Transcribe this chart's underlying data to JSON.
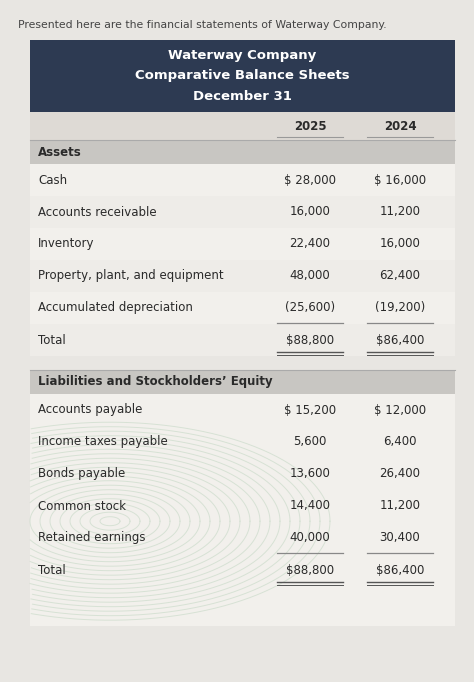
{
  "intro_text": "Presented here are the financial statements of Waterway Company.",
  "header_title": "Waterway Company\nComparative Balance Sheets\nDecember 31",
  "header_bg": "#2d3a52",
  "header_text_color": "#ffffff",
  "col_headers": [
    "2025",
    "2024"
  ],
  "section1_label": "Assets",
  "section2_label": "Liabilities and Stockholders’ Equity",
  "assets_rows": [
    [
      "Cash",
      "$ 28,000",
      "$ 16,000"
    ],
    [
      "Accounts receivable",
      "16,000",
      "11,200"
    ],
    [
      "Inventory",
      "22,400",
      "16,000"
    ],
    [
      "Property, plant, and equipment",
      "48,000",
      "62,400"
    ],
    [
      "Accumulated depreciation",
      "(25,600)",
      "(19,200)"
    ],
    [
      "Total",
      "$88,800",
      "$86,400"
    ]
  ],
  "liabilities_rows": [
    [
      "Accounts payable",
      "$ 15,200",
      "$ 12,000"
    ],
    [
      "Income taxes payable",
      "5,600",
      "6,400"
    ],
    [
      "Bonds payable",
      "13,600",
      "26,400"
    ],
    [
      "Common stock",
      "14,400",
      "11,200"
    ],
    [
      "Retained earnings",
      "40,000",
      "30,400"
    ],
    [
      "Total",
      "$88,800",
      "$86,400"
    ]
  ],
  "page_bg": "#e8e6e2",
  "table_bg": "#f2f0ec",
  "section_header_bg": "#c8c6c2",
  "col_header_bg": "#dedad5",
  "text_color": "#2a2a2a",
  "header_text_color_dark": "#333333",
  "row_line_color": "#bbbbbb",
  "total_line_color": "#777777",
  "watermark_line_color": "#c5d8c5",
  "font_size": 8.5,
  "intro_font_size": 7.8
}
